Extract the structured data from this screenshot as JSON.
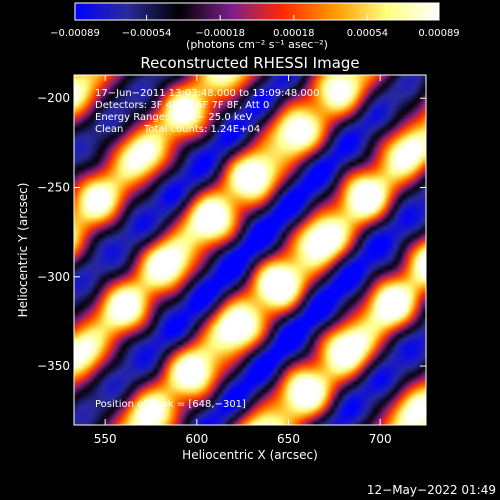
{
  "chart_data": {
    "type": "heatmap",
    "title": "Reconstructed RHESSI Image",
    "xlabel": "Heliocentric X (arcsec)",
    "ylabel": "Heliocentric Y (arcsec)",
    "xlim": [
      533,
      725
    ],
    "ylim": [
      -383,
      -187
    ],
    "x_ticks": [
      550,
      600,
      650,
      700
    ],
    "y_ticks": [
      -200,
      -250,
      -300,
      -350
    ],
    "x_tick_labels": [
      "550",
      "600",
      "650",
      "700"
    ],
    "y_tick_labels": [
      "−200",
      "−250",
      "−300",
      "−350"
    ],
    "colorbar": {
      "min": -0.00089,
      "max": 0.00089,
      "ticks": [
        -0.00089,
        -0.00054,
        -0.00018,
        0.00018,
        0.00054,
        0.00089
      ],
      "tick_labels": [
        "−0.00089",
        "−0.00054",
        "−0.00018",
        "0.00018",
        "0.00054",
        "0.00089"
      ],
      "unit_label": "(photons cm⁻² s⁻¹ asec⁻²)",
      "colors": [
        "#0000ff",
        "#2a2a9c",
        "#000000",
        "#7a1f8c",
        "#ff2a00",
        "#ff9a00",
        "#ffff80",
        "#ffffff"
      ]
    },
    "annotations": {
      "time_range": "17−Jun−2011 13:03:48.000 to 13:09:48.000",
      "detectors": "Detectors: 3F 4F 5F 6F 7F 8F, Att 0",
      "energy_range": "Energy Range: 12.0 − 25.0 keV",
      "clean_label": "Clean",
      "total_counts": "Total counts: 1.24E+04",
      "peak": "Position of Peak = [648,−301]"
    },
    "peak_position": [
      648,
      -301
    ],
    "image_pattern": {
      "description_units": "arcsec",
      "ridge_direction": "diagonal, lower-left to upper-right",
      "ridge_spacing_arcsec": 52
    }
  },
  "footer": {
    "timestamp": "12−May−2022 01:49"
  },
  "colors": {
    "background": "#000000",
    "text": "#ffffff"
  }
}
